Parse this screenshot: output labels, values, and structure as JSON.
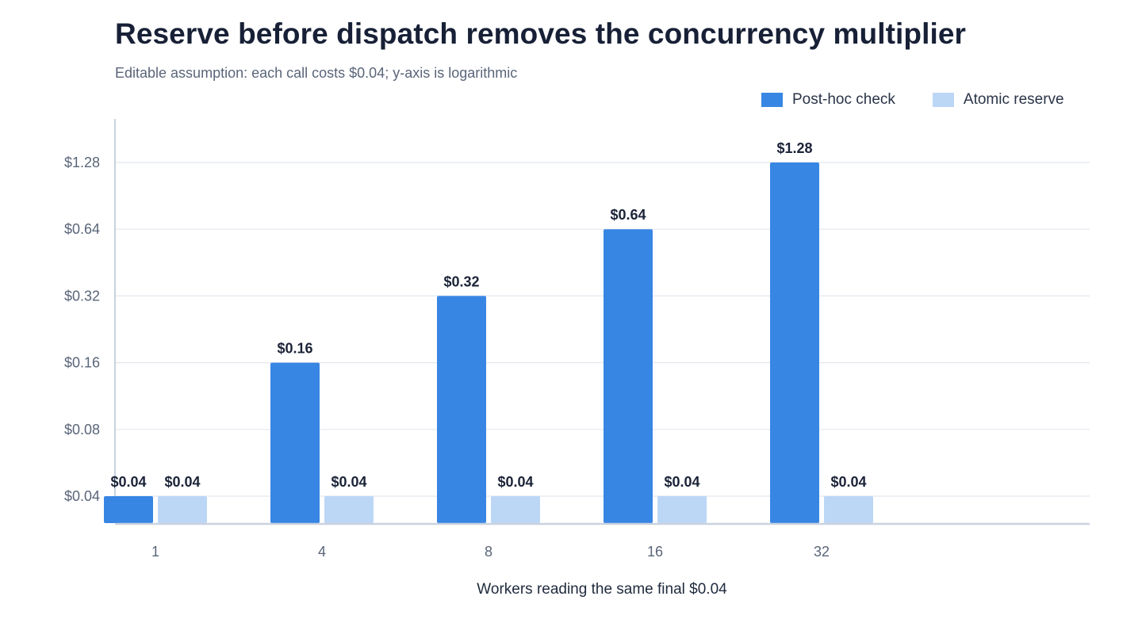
{
  "chart_data": {
    "type": "bar",
    "title": "Reserve before dispatch removes the concurrency multiplier",
    "subtitle": "Editable assumption: each call costs $0.04; y-axis is logarithmic",
    "xlabel": "Workers reading the same final $0.04",
    "ylabel": "",
    "y_scale": "log2",
    "ylim": [
      0.04,
      1.28
    ],
    "y_ticks": [
      0.04,
      0.08,
      0.16,
      0.32,
      0.64,
      1.28
    ],
    "y_tick_labels": [
      "$0.04",
      "$0.08",
      "$0.16",
      "$0.32",
      "$0.64",
      "$1.28"
    ],
    "categories": [
      "1",
      "4",
      "8",
      "16",
      "32"
    ],
    "grid": true,
    "legend_position": "top-right",
    "series": [
      {
        "name": "Post-hoc check",
        "color": "#3886e4",
        "values": [
          0.04,
          0.16,
          0.32,
          0.64,
          1.28
        ],
        "labels": [
          "$0.04",
          "$0.16",
          "$0.32",
          "$0.64",
          "$1.28"
        ]
      },
      {
        "name": "Atomic reserve",
        "color": "#bcd6f6",
        "values": [
          0.04,
          0.04,
          0.04,
          0.04,
          0.04
        ],
        "labels": [
          "$0.04",
          "$0.04",
          "$0.04",
          "$0.04",
          "$0.04"
        ]
      }
    ]
  }
}
